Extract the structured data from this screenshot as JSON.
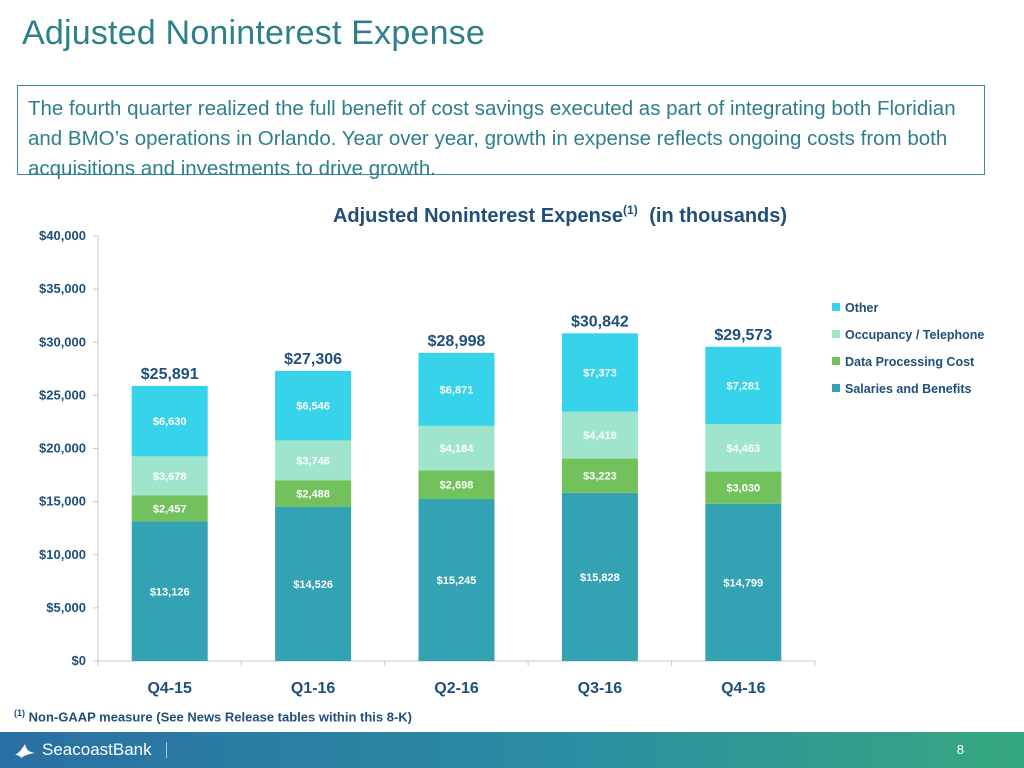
{
  "header": {
    "title": "Adjusted Noninterest Expense"
  },
  "summary": {
    "text": "The fourth quarter realized the full benefit of cost savings executed as part of integrating both Floridian and BMO’s operations in Orlando. Year over year, growth in expense reflects ongoing costs from both acquisitions and investments to drive growth."
  },
  "chart_data": {
    "type": "bar",
    "stacked": true,
    "title": "Adjusted Noninterest Expense",
    "title_superscript": "(1)",
    "title_suffix": "(in thousands)",
    "categories": [
      "Q4-15",
      "Q1-16",
      "Q2-16",
      "Q3-16",
      "Q4-16"
    ],
    "series": [
      {
        "name": "Salaries and Benefits",
        "color": "#33a3b3",
        "values": [
          13126,
          14526,
          15245,
          15828,
          14799
        ],
        "labels": [
          "$13,126",
          "$14,526",
          "$15,245",
          "$15,828",
          "$14,799"
        ]
      },
      {
        "name": "Data Processing Cost",
        "color": "#72c15d",
        "values": [
          2457,
          2488,
          2698,
          3223,
          3030
        ],
        "labels": [
          "$2,457",
          "$2,488",
          "$2,698",
          "$3,223",
          "$3,030"
        ]
      },
      {
        "name": "Occupancy / Telephone",
        "color": "#9fe5cc",
        "values": [
          3678,
          3746,
          4184,
          4418,
          4463
        ],
        "labels": [
          "$3,678",
          "$3,746",
          "$4,184",
          "$4,418",
          "$4,463"
        ]
      },
      {
        "name": "Other",
        "color": "#37d3ea",
        "values": [
          6630,
          6546,
          6871,
          7373,
          7281
        ],
        "labels": [
          "$6,630",
          "$6,546",
          "$6,871",
          "$7,373",
          "$7,281"
        ]
      }
    ],
    "totals": [
      25891,
      27306,
      28998,
      30842,
      29573
    ],
    "total_labels": [
      "$25,891",
      "$27,306",
      "$28,998",
      "$30,842",
      "$29,573"
    ],
    "ylim": [
      0,
      40000
    ],
    "yticks": [
      0,
      5000,
      10000,
      15000,
      20000,
      25000,
      30000,
      35000,
      40000
    ],
    "ytick_labels": [
      "$0",
      "$5,000",
      "$10,000",
      "$15,000",
      "$20,000",
      "$25,000",
      "$30,000",
      "$35,000",
      "$40,000"
    ],
    "legend_order": [
      "Other",
      "Occupancy / Telephone",
      "Data Processing Cost",
      "Salaries and Benefits"
    ],
    "legend_position": "right",
    "grid": false
  },
  "footnote": {
    "marker": "(1)",
    "text": "Non-GAAP measure (See News Release tables within this 8-K)"
  },
  "footer": {
    "brand": "SeacoastBank",
    "page": "8"
  }
}
